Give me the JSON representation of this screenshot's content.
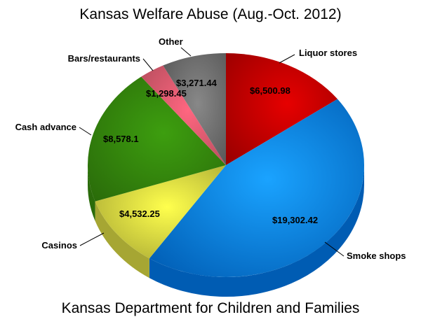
{
  "chart_data": {
    "type": "pie",
    "title": "Kansas Welfare Abuse (Aug.-Oct. 2012)",
    "subtitle": "Kansas Department for Children and Families",
    "slices": [
      {
        "label": "Liquor stores",
        "value": 6500.98,
        "value_label": "$6,500.98",
        "color": "#e60000",
        "side": "#990000"
      },
      {
        "label": "Smoke shops",
        "value": 19302.42,
        "value_label": "$19,302.42",
        "color": "#1aa3ff",
        "side": "#005cb3"
      },
      {
        "label": "Casinos",
        "value": 4532.25,
        "value_label": "$4,532.25",
        "color": "#ffff4d",
        "side": "#a6a633"
      },
      {
        "label": "Cash advance",
        "value": 8578.1,
        "value_label": "$8,578.1",
        "color": "#3d9e0f",
        "side": "#2a6b0a"
      },
      {
        "label": "Bars/restaurants",
        "value": 1298.45,
        "value_label": "$1,298.45",
        "color": "#ff6680",
        "side": "#b34d5c"
      },
      {
        "label": "Other",
        "value": 3271.44,
        "value_label": "$3,271.44",
        "color": "#888888",
        "side": "#555555"
      }
    ]
  }
}
